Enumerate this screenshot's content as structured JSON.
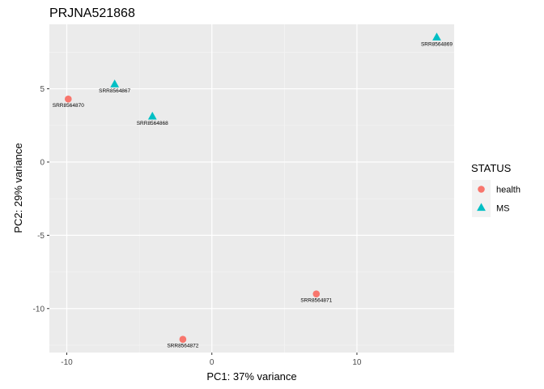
{
  "chart_data": {
    "type": "scatter",
    "title": "PRJNA521868",
    "xlabel": "PC1: 37% variance",
    "ylabel": "PC2: 29% variance",
    "xlim": [
      -11.2,
      16.7
    ],
    "ylim": [
      -13.0,
      9.4
    ],
    "xticks": [
      -10,
      0,
      10
    ],
    "xtick_labels": [
      "-10",
      "0",
      "10"
    ],
    "yticks": [
      -10,
      -5,
      0,
      5
    ],
    "ytick_labels": [
      "-10",
      "-5",
      "0",
      "5"
    ],
    "grid": true,
    "legend_title": "STATUS",
    "legend_position": "right",
    "series": [
      {
        "name": "health",
        "color": "#F8766D",
        "marker": "circle",
        "points": [
          {
            "x": -9.9,
            "y": 4.3,
            "label": "SRR8564870"
          },
          {
            "x": 7.2,
            "y": -9.0,
            "label": "SRR8564871"
          },
          {
            "x": -2.0,
            "y": -12.1,
            "label": "SRR8564872"
          }
        ]
      },
      {
        "name": "MS",
        "color": "#00BFC4",
        "marker": "triangle",
        "points": [
          {
            "x": -6.7,
            "y": 5.3,
            "label": "SRR8564867"
          },
          {
            "x": -4.1,
            "y": 3.1,
            "label": "SRR8564868"
          },
          {
            "x": 15.5,
            "y": 8.5,
            "label": "SRR8564869"
          }
        ]
      }
    ]
  }
}
